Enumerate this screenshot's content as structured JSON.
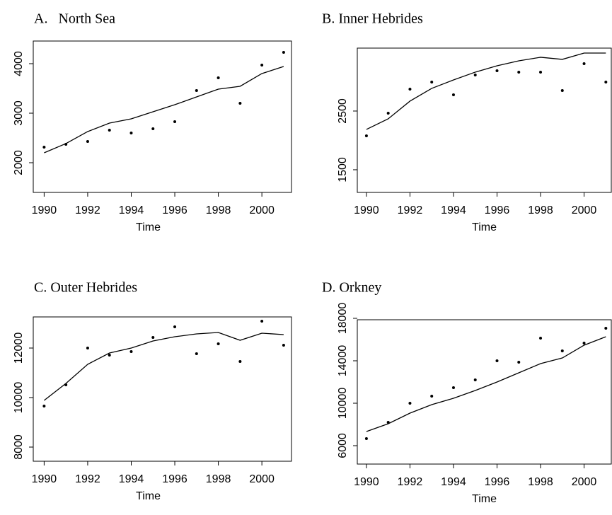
{
  "chart_data": [
    {
      "type": "line",
      "title": "A.   North Sea",
      "xlabel": "Time",
      "x": [
        1990,
        1991,
        1992,
        1993,
        1994,
        1995,
        1996,
        1997,
        1998,
        1999,
        2000,
        2001
      ],
      "series": [
        {
          "style": "points",
          "color": "#000000",
          "values": [
            2314,
            2371,
            2429,
            2657,
            2600,
            2686,
            2829,
            3457,
            3714,
            3200,
            3971,
            4229
          ]
        },
        {
          "style": "line",
          "color": "#000000",
          "values": [
            2200,
            2386,
            2629,
            2800,
            2886,
            3029,
            3171,
            3329,
            3486,
            3543,
            3800,
            3943
          ]
        }
      ],
      "xlim": [
        1989.5,
        2001.36
      ],
      "xticks": [
        1990,
        1992,
        1994,
        1996,
        1998,
        2000
      ],
      "ylim": [
        1400,
        4457
      ],
      "yticks": [
        2000,
        3000,
        4000
      ]
    },
    {
      "type": "line",
      "title": "B. Inner Hebrides",
      "xlabel": "Time",
      "x": [
        1990,
        1991,
        1992,
        1993,
        1994,
        1995,
        1996,
        1997,
        1998,
        1999,
        2000,
        2001
      ],
      "series": [
        {
          "style": "points",
          "color": "#000000",
          "values": [
            2078,
            2464,
            2873,
            2994,
            2777,
            3114,
            3187,
            3163,
            3163,
            2849,
            3307,
            2994
          ]
        },
        {
          "style": "line",
          "color": "#000000",
          "values": [
            2187,
            2367,
            2669,
            2886,
            3030,
            3163,
            3271,
            3355,
            3416,
            3380,
            3488,
            3488
          ]
        }
      ],
      "xlim": [
        1989.58,
        2001.25
      ],
      "xticks": [
        1990,
        1992,
        1994,
        1996,
        1998,
        2000
      ],
      "ylim": [
        1114,
        3572
      ],
      "yticks": [
        1500,
        2500
      ]
    },
    {
      "type": "line",
      "title": "C. Outer Hebrides",
      "xlabel": "Time",
      "x": [
        1990,
        1991,
        1992,
        1993,
        1994,
        1995,
        1996,
        1997,
        1998,
        1999,
        2000,
        2001
      ],
      "series": [
        {
          "style": "points",
          "color": "#000000",
          "values": [
            9657,
            10514,
            12000,
            11714,
            11857,
            12429,
            12857,
            11771,
            12171,
            11457,
            13086,
            12114
          ]
        },
        {
          "style": "line",
          "color": "#000000",
          "values": [
            9886,
            10571,
            11343,
            11800,
            12000,
            12286,
            12457,
            12571,
            12629,
            12314,
            12600,
            12543
          ]
        }
      ],
      "xlim": [
        1989.5,
        2001.36
      ],
      "xticks": [
        1990,
        1992,
        1994,
        1996,
        1998,
        2000
      ],
      "ylim": [
        7429,
        13257
      ],
      "yticks": [
        8000,
        10000,
        12000
      ]
    },
    {
      "type": "line",
      "title": "D. Orkney",
      "xlabel": "Time",
      "x": [
        1990,
        1991,
        1992,
        1993,
        1994,
        1995,
        1996,
        1997,
        1998,
        1999,
        2000,
        2001
      ],
      "series": [
        {
          "style": "points",
          "color": "#000000",
          "values": [
            6667,
            8200,
            10000,
            10667,
            11467,
            12200,
            14000,
            13867,
            16133,
            14933,
            15667,
            17067
          ]
        },
        {
          "style": "line",
          "color": "#000000",
          "values": [
            7333,
            8067,
            9067,
            9867,
            10467,
            11200,
            12000,
            12867,
            13733,
            14267,
            15467,
            16267
          ]
        }
      ],
      "xlim": [
        1989.58,
        2001.25
      ],
      "xticks": [
        1990,
        1992,
        1994,
        1996,
        1998,
        2000
      ],
      "ylim": [
        4267,
        17867
      ],
      "yticks": [
        6000,
        10000,
        14000,
        18000
      ]
    }
  ]
}
